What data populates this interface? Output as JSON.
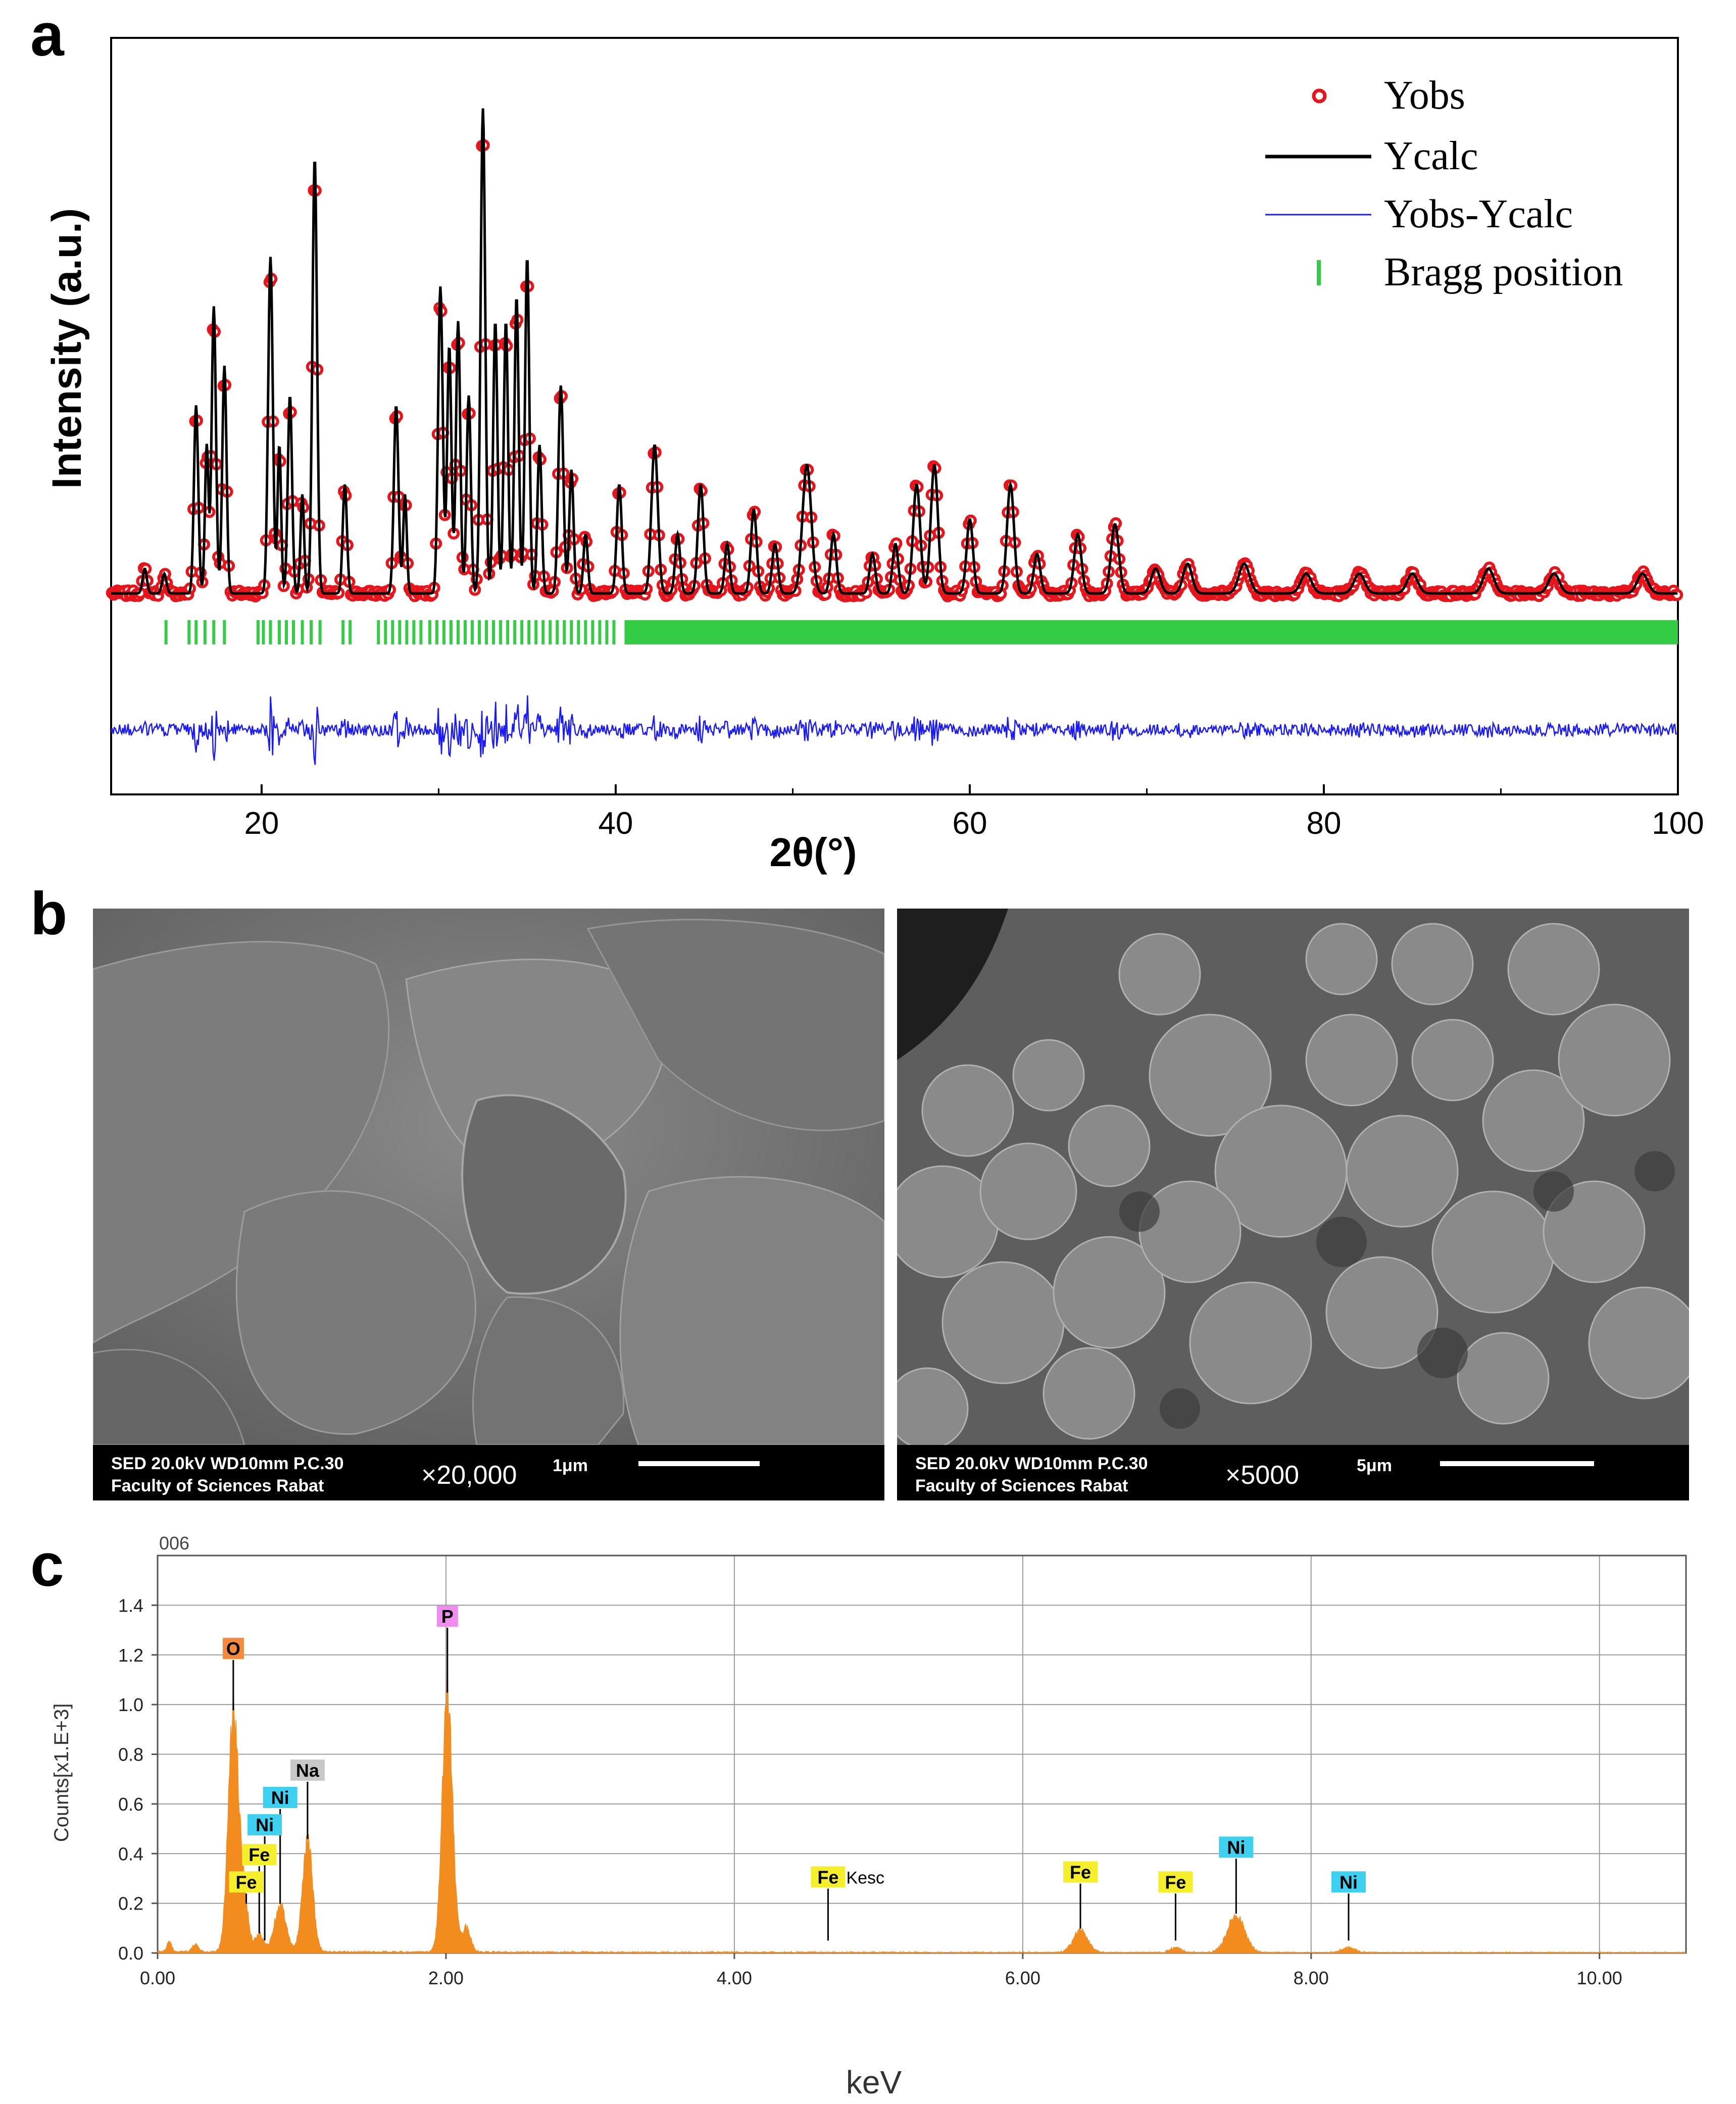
{
  "panel_labels": {
    "a": "a",
    "b": "b",
    "c": "c"
  },
  "chart_data": [
    {
      "type": "scatter",
      "panel": "a",
      "title": "",
      "xlabel": "2θ(°)",
      "ylabel": "Intensity (a.u.)",
      "xlim": [
        11.5,
        100
      ],
      "xticks": [
        20,
        40,
        60,
        80,
        100
      ],
      "grid": false,
      "legend_position": "top-right",
      "legend": [
        "Yobs",
        "Ycalc",
        "Yobs-Ycalc",
        "Bragg position"
      ],
      "colors": {
        "Yobs": "#e8141b",
        "Ycalc": "#000000",
        "Yobs-Ycalc": "#1a1aff",
        "Bragg position": "#33cc44"
      },
      "baseline": 0.06,
      "peaks": [
        [
          13.4,
          0.05,
          0.12
        ],
        [
          14.5,
          0.04,
          0.12
        ],
        [
          16.3,
          0.38,
          0.12
        ],
        [
          16.9,
          0.3,
          0.1
        ],
        [
          17.3,
          0.58,
          0.12
        ],
        [
          17.9,
          0.46,
          0.12
        ],
        [
          20.5,
          0.68,
          0.13
        ],
        [
          21.0,
          0.3,
          0.1
        ],
        [
          21.6,
          0.4,
          0.12
        ],
        [
          22.3,
          0.2,
          0.1
        ],
        [
          23.0,
          0.88,
          0.13
        ],
        [
          24.7,
          0.22,
          0.12
        ],
        [
          27.6,
          0.38,
          0.13
        ],
        [
          28.1,
          0.2,
          0.1
        ],
        [
          30.1,
          0.62,
          0.13
        ],
        [
          30.6,
          0.5,
          0.12
        ],
        [
          31.1,
          0.55,
          0.12
        ],
        [
          31.7,
          0.4,
          0.12
        ],
        [
          32.5,
          0.98,
          0.13
        ],
        [
          33.2,
          0.55,
          0.12
        ],
        [
          33.8,
          0.55,
          0.12
        ],
        [
          34.4,
          0.6,
          0.12
        ],
        [
          35.0,
          0.68,
          0.12
        ],
        [
          35.7,
          0.3,
          0.12
        ],
        [
          36.9,
          0.42,
          0.14
        ],
        [
          37.5,
          0.25,
          0.12
        ],
        [
          38.3,
          0.12,
          0.12
        ],
        [
          40.2,
          0.22,
          0.14
        ],
        [
          42.2,
          0.3,
          0.18
        ],
        [
          43.5,
          0.12,
          0.14
        ],
        [
          44.8,
          0.22,
          0.16
        ],
        [
          46.3,
          0.1,
          0.14
        ],
        [
          47.8,
          0.17,
          0.16
        ],
        [
          49.0,
          0.1,
          0.16
        ],
        [
          50.8,
          0.26,
          0.25
        ],
        [
          52.3,
          0.12,
          0.16
        ],
        [
          54.5,
          0.08,
          0.16
        ],
        [
          55.8,
          0.1,
          0.16
        ],
        [
          57.0,
          0.22,
          0.2
        ],
        [
          58.0,
          0.26,
          0.2
        ],
        [
          60.0,
          0.15,
          0.18
        ],
        [
          62.3,
          0.22,
          0.2
        ],
        [
          63.8,
          0.08,
          0.18
        ],
        [
          66.1,
          0.12,
          0.2
        ],
        [
          68.2,
          0.14,
          0.22
        ],
        [
          70.5,
          0.05,
          0.25
        ],
        [
          72.3,
          0.06,
          0.25
        ],
        [
          75.5,
          0.06,
          0.3
        ],
        [
          79.0,
          0.04,
          0.3
        ],
        [
          82.0,
          0.04,
          0.3
        ],
        [
          85.0,
          0.04,
          0.3
        ],
        [
          89.3,
          0.05,
          0.3
        ],
        [
          93.0,
          0.04,
          0.3
        ],
        [
          98.0,
          0.04,
          0.3
        ]
      ],
      "bragg_positions": [
        14.6,
        15.9,
        16.3,
        16.8,
        17.3,
        17.9,
        19.8,
        20.1,
        20.5,
        21.0,
        21.4,
        21.8,
        22.3,
        22.8,
        23.3,
        24.6,
        25.0,
        26.6,
        27.0,
        27.4,
        27.8,
        28.2,
        28.6,
        29.0,
        29.5,
        29.9,
        30.3,
        30.7,
        31.1,
        31.5,
        31.9,
        32.3,
        32.7,
        33.1,
        33.5,
        33.9,
        34.3,
        34.7,
        35.1,
        35.5,
        35.9,
        36.3,
        36.7,
        37.1,
        37.5,
        37.9,
        38.3,
        38.7,
        39.1,
        39.5,
        39.9
      ],
      "bragg_dense_range": [
        40.5,
        100
      ]
    },
    {
      "type": "area",
      "panel": "c",
      "title": "006",
      "xlabel": "keV",
      "ylabel": "Counts[x1.E+3]",
      "xlim": [
        0,
        10.6
      ],
      "ylim": [
        0,
        1.6
      ],
      "xticks": [
        "0.00",
        "2.00",
        "4.00",
        "6.00",
        "8.00",
        "10.00"
      ],
      "yticks": [
        "0.0",
        "0.2",
        "0.4",
        "0.6",
        "0.8",
        "1.0",
        "1.2",
        "1.4"
      ],
      "grid": true,
      "color": "#f28c1e",
      "peaks": [
        [
          0.08,
          0.04,
          0.015
        ],
        [
          0.26,
          0.03,
          0.02
        ],
        [
          0.525,
          0.96,
          0.035
        ],
        [
          0.6,
          0.2,
          0.03
        ],
        [
          0.705,
          0.07,
          0.03
        ],
        [
          0.85,
          0.19,
          0.04
        ],
        [
          1.04,
          0.45,
          0.035
        ],
        [
          2.01,
          1.04,
          0.035
        ],
        [
          2.14,
          0.1,
          0.03
        ],
        [
          6.4,
          0.09,
          0.05
        ],
        [
          7.06,
          0.02,
          0.04
        ],
        [
          7.48,
          0.15,
          0.06
        ],
        [
          8.26,
          0.02,
          0.05
        ]
      ],
      "annotations": [
        {
          "label": "O",
          "kev": 0.525,
          "label_y": 1.22,
          "color": "#f58a3c"
        },
        {
          "label": "P",
          "kev": 2.01,
          "label_y": 1.35,
          "color": "#f08cf0"
        },
        {
          "label": "Na",
          "kev": 1.04,
          "label_y": 0.73,
          "color": "#c8c8c8"
        },
        {
          "label": "Ni",
          "kev": 0.85,
          "label_y": 0.62,
          "color": "#3ed0f0"
        },
        {
          "label": "Ni",
          "kev": 0.743,
          "label_y": 0.51,
          "color": "#3ed0f0"
        },
        {
          "label": "Fe",
          "kev": 0.705,
          "label_y": 0.39,
          "color": "#f5ee2a"
        },
        {
          "label": "Fe",
          "kev": 0.615,
          "label_y": 0.28,
          "color": "#f5ee2a"
        },
        {
          "label": "Fe",
          "kev": 4.65,
          "label_y": 0.3,
          "color": "#f5ee2a",
          "suffix": "Kesc"
        },
        {
          "label": "Fe",
          "kev": 6.4,
          "label_y": 0.32,
          "color": "#f5ee2a"
        },
        {
          "label": "Fe",
          "kev": 7.06,
          "label_y": 0.28,
          "color": "#f5ee2a"
        },
        {
          "label": "Ni",
          "kev": 7.48,
          "label_y": 0.42,
          "color": "#3ed0f0"
        },
        {
          "label": "Ni",
          "kev": 8.26,
          "label_y": 0.28,
          "color": "#3ed0f0"
        }
      ]
    }
  ],
  "sem_images": [
    {
      "line1": "SED  20.0kV WD10mm P.C.30",
      "line2": "Faculty of Sciences Rabat",
      "magnification": "×20,000",
      "scale_label": "1μm"
    },
    {
      "line1": "SED  20.0kV WD10mm P.C.30",
      "line2": "Faculty of Sciences Rabat",
      "magnification": "×5000",
      "scale_label": "5μm"
    }
  ]
}
